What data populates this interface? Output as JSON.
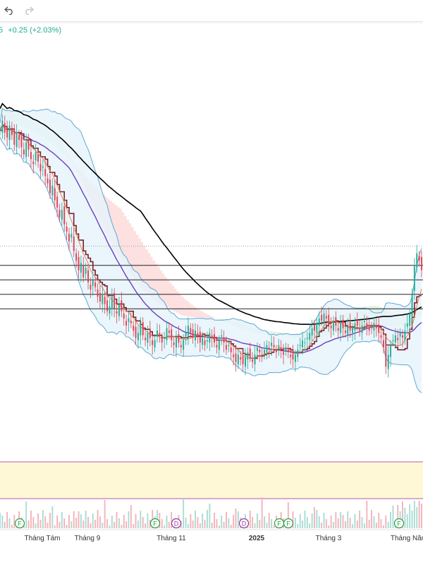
{
  "toolbar": {
    "undo_icon": "undo-arrow-icon",
    "redo_icon": "redo-arrow-icon"
  },
  "quote": {
    "value_prefix": "5",
    "change": "+0.25 (+2.03%)",
    "color": "#22ab94"
  },
  "colors": {
    "up": "#22ab94",
    "down": "#e0404f",
    "bollinger": "#5fa8d3",
    "bollinger_fill": "#e6f3fb",
    "cloud_bear": "#fde0e0",
    "cloud_bull": "#e3f2e6",
    "ma_long": "#000000",
    "ma_mid": "#6a3fb8",
    "baseline": "#7b1f2c",
    "fast": "#e0874a",
    "rsi_band": "#fff8d6",
    "rsi_border": "#b25aa8"
  },
  "chart_data": {
    "type": "candlestick",
    "x_axis_labels": [
      "Tháng Tám",
      "Tháng 9",
      "Tháng 11",
      "2025",
      "Tháng 3",
      "Tháng Năm"
    ],
    "event_markers": [
      {
        "label": "F",
        "type": "financials"
      },
      {
        "label": "F",
        "type": "financials"
      },
      {
        "label": "D",
        "type": "dividend"
      },
      {
        "label": "D",
        "type": "dividend"
      },
      {
        "label": "F",
        "type": "financials"
      },
      {
        "label": "F",
        "type": "financials"
      },
      {
        "label": "F",
        "type": "financials"
      }
    ],
    "close": [
      20.2,
      20.6,
      20.1,
      19.9,
      20.4,
      20.0,
      19.6,
      20.1,
      19.8,
      19.5,
      19.2,
      19.7,
      19.4,
      19.0,
      18.8,
      19.3,
      18.9,
      18.5,
      18.7,
      18.3,
      18.0,
      17.6,
      17.9,
      17.3,
      17.0,
      16.6,
      16.9,
      16.3,
      16.0,
      15.6,
      15.9,
      15.2,
      14.8,
      14.4,
      14.7,
      14.1,
      14.5,
      13.9,
      13.6,
      14.0,
      13.7,
      13.3,
      13.1,
      13.4,
      13.0,
      12.7,
      12.9,
      13.3,
      12.8,
      12.6,
      13.0,
      12.7,
      12.4,
      12.1,
      12.4,
      12.2,
      11.9,
      11.6,
      11.8,
      12.1,
      11.7,
      11.5,
      11.8,
      11.6,
      11.3,
      11.5,
      11.9,
      11.7,
      11.4,
      11.6,
      12.0,
      11.8,
      11.5,
      11.3,
      11.6,
      11.4,
      11.2,
      11.5,
      11.8,
      12.1,
      11.8,
      11.6,
      11.9,
      11.7,
      11.4,
      11.6,
      11.3,
      11.5,
      11.8,
      11.6,
      11.4,
      11.2,
      11.5,
      11.7,
      11.4,
      11.1,
      11.3,
      11.0,
      10.8,
      10.6,
      10.9,
      10.7,
      10.5,
      10.8,
      11.0,
      10.8,
      10.6,
      10.9,
      11.2,
      11.0,
      10.8,
      11.1,
      11.3,
      11.1,
      11.4,
      11.2,
      11.0,
      11.3,
      11.1,
      10.9,
      11.2,
      11.0,
      10.8,
      10.7,
      10.9,
      11.1,
      11.3,
      11.5,
      11.4,
      11.6,
      11.8,
      12.0,
      11.9,
      12.2,
      12.4,
      12.3,
      12.6,
      12.4,
      12.2,
      12.0,
      12.3,
      12.1,
      11.9,
      12.2,
      12.0,
      11.8,
      12.1,
      11.9,
      12.0,
      12.2,
      12.1,
      11.9,
      12.1,
      12.3,
      12.1,
      11.9,
      12.0,
      12.2,
      12.0,
      11.8,
      11.6,
      11.2,
      10.4,
      10.9,
      11.3,
      11.5,
      11.7,
      11.5,
      11.8,
      11.6,
      11.9,
      12.2,
      12.6,
      13.4,
      14.6,
      15.1,
      14.8,
      14.4
    ]
  }
}
